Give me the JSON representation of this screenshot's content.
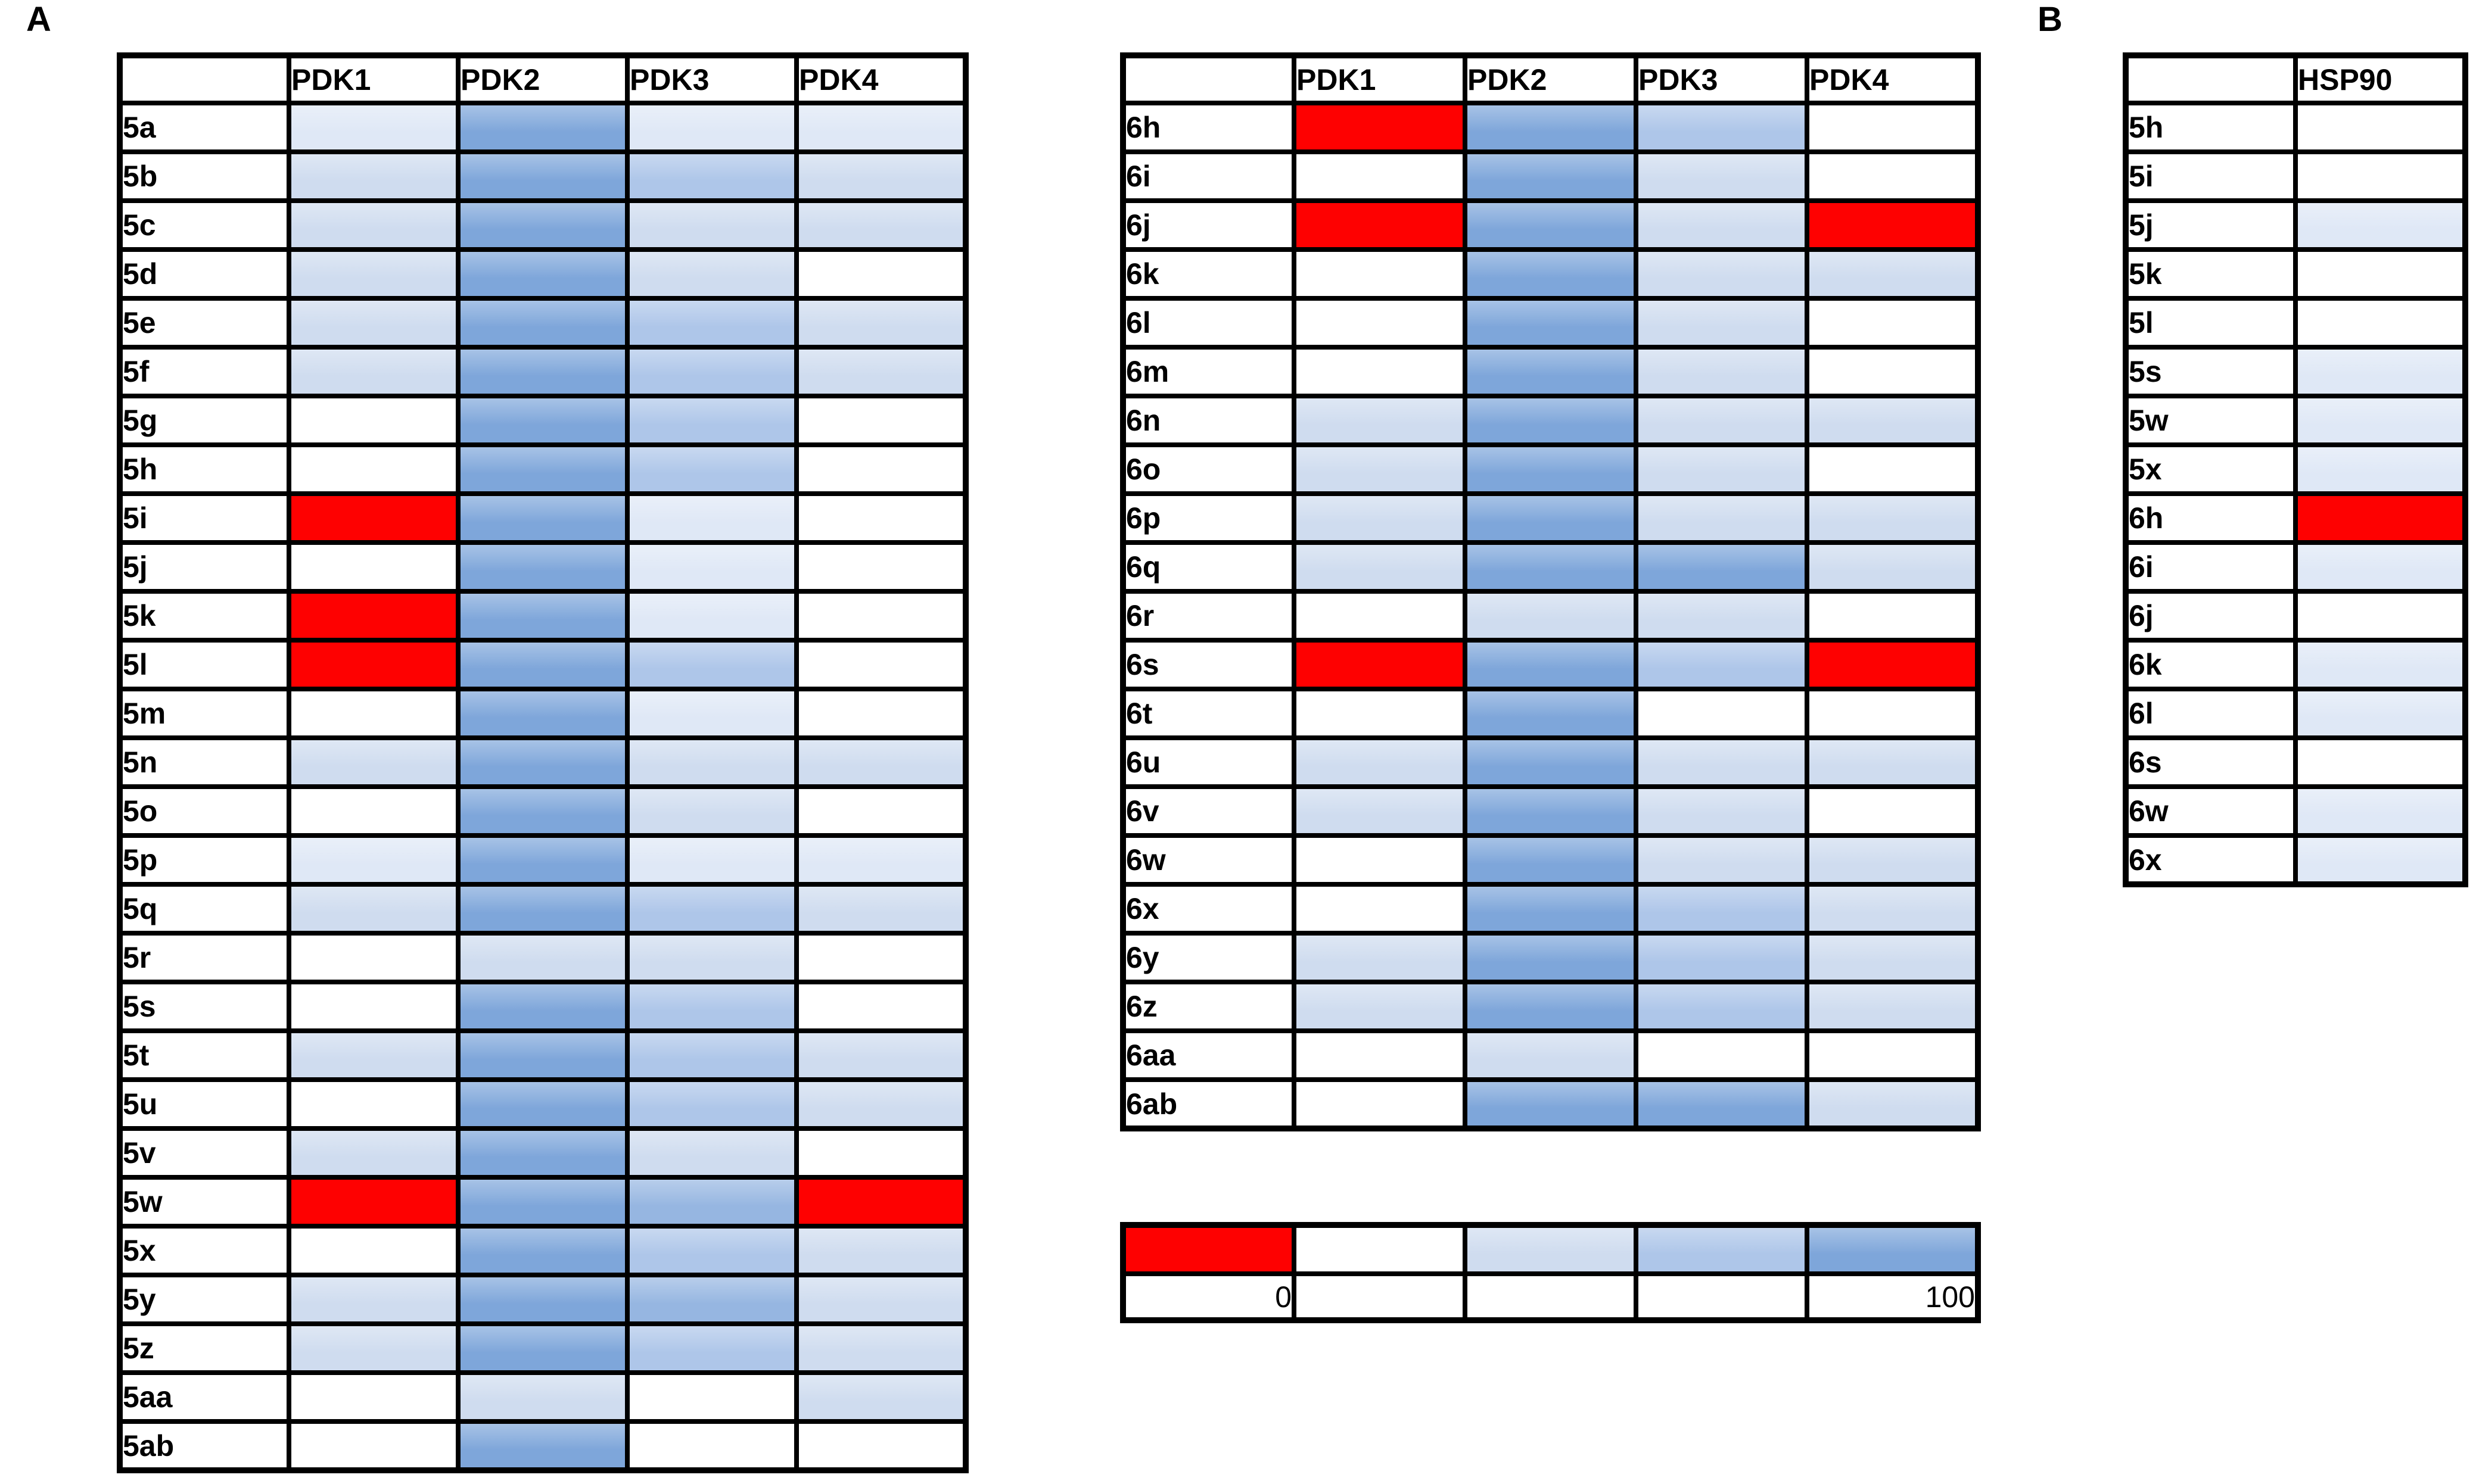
{
  "panels": {
    "a_label": "A",
    "b_label": "B"
  },
  "palette": {
    "R": "#fe0101",
    "0": "#ffffff",
    "1": "#dfe8f6",
    "2": "#cfdcef",
    "3": "#aec6e9",
    "4": "#96b6e1",
    "5": "#7ea6da"
  },
  "tables": {
    "t5": {
      "columns": [
        "",
        "PDK1",
        "PDK2",
        "PDK3",
        "PDK4"
      ],
      "rows": [
        {
          "label": "5a",
          "levels": [
            "1",
            "5",
            "1",
            "1"
          ]
        },
        {
          "label": "5b",
          "levels": [
            "2",
            "5",
            "3",
            "2"
          ]
        },
        {
          "label": "5c",
          "levels": [
            "2",
            "5",
            "2",
            "2"
          ]
        },
        {
          "label": "5d",
          "levels": [
            "2",
            "5",
            "2",
            "0"
          ]
        },
        {
          "label": "5e",
          "levels": [
            "2",
            "5",
            "3",
            "2"
          ]
        },
        {
          "label": "5f",
          "levels": [
            "2",
            "5",
            "3",
            "2"
          ]
        },
        {
          "label": "5g",
          "levels": [
            "0",
            "5",
            "3",
            "0"
          ]
        },
        {
          "label": "5h",
          "levels": [
            "0",
            "5",
            "3",
            "0"
          ]
        },
        {
          "label": "5i",
          "levels": [
            "R",
            "5",
            "1",
            "0"
          ]
        },
        {
          "label": "5j",
          "levels": [
            "0",
            "5",
            "1",
            "0"
          ]
        },
        {
          "label": "5k",
          "levels": [
            "R",
            "5",
            "1",
            "0"
          ]
        },
        {
          "label": "5l",
          "levels": [
            "R",
            "5",
            "3",
            "0"
          ]
        },
        {
          "label": "5m",
          "levels": [
            "0",
            "5",
            "1",
            "0"
          ]
        },
        {
          "label": "5n",
          "levels": [
            "2",
            "5",
            "2",
            "2"
          ]
        },
        {
          "label": "5o",
          "levels": [
            "0",
            "5",
            "2",
            "0"
          ]
        },
        {
          "label": "5p",
          "levels": [
            "1",
            "5",
            "1",
            "1"
          ]
        },
        {
          "label": "5q",
          "levels": [
            "2",
            "5",
            "3",
            "2"
          ]
        },
        {
          "label": "5r",
          "levels": [
            "0",
            "2",
            "2",
            "0"
          ]
        },
        {
          "label": "5s",
          "levels": [
            "0",
            "5",
            "3",
            "0"
          ]
        },
        {
          "label": "5t",
          "levels": [
            "2",
            "5",
            "3",
            "2"
          ]
        },
        {
          "label": "5u",
          "levels": [
            "0",
            "5",
            "3",
            "2"
          ]
        },
        {
          "label": "5v",
          "levels": [
            "2",
            "5",
            "2",
            "0"
          ]
        },
        {
          "label": "5w",
          "levels": [
            "R",
            "5",
            "4",
            "R"
          ]
        },
        {
          "label": "5x",
          "levels": [
            "0",
            "5",
            "3",
            "2"
          ]
        },
        {
          "label": "5y",
          "levels": [
            "2",
            "5",
            "4",
            "2"
          ]
        },
        {
          "label": "5z",
          "levels": [
            "2",
            "5",
            "3",
            "2"
          ]
        },
        {
          "label": "5aa",
          "levels": [
            "0",
            "2",
            "0",
            "2"
          ]
        },
        {
          "label": "5ab",
          "levels": [
            "0",
            "5",
            "0",
            "0"
          ]
        }
      ]
    },
    "t6": {
      "columns": [
        "",
        "PDK1",
        "PDK2",
        "PDK3",
        "PDK4"
      ],
      "rows": [
        {
          "label": "6h",
          "levels": [
            "R",
            "5",
            "3",
            "0"
          ]
        },
        {
          "label": "6i",
          "levels": [
            "0",
            "5",
            "2",
            "0"
          ]
        },
        {
          "label": "6j",
          "levels": [
            "R",
            "5",
            "2",
            "R"
          ]
        },
        {
          "label": "6k",
          "levels": [
            "0",
            "5",
            "2",
            "2"
          ]
        },
        {
          "label": "6l",
          "levels": [
            "0",
            "5",
            "2",
            "0"
          ]
        },
        {
          "label": "6m",
          "levels": [
            "0",
            "5",
            "2",
            "0"
          ]
        },
        {
          "label": "6n",
          "levels": [
            "2",
            "5",
            "2",
            "2"
          ]
        },
        {
          "label": "6o",
          "levels": [
            "2",
            "5",
            "2",
            "0"
          ]
        },
        {
          "label": "6p",
          "levels": [
            "2",
            "5",
            "2",
            "2"
          ]
        },
        {
          "label": "6q",
          "levels": [
            "2",
            "5",
            "5",
            "2"
          ]
        },
        {
          "label": "6r",
          "levels": [
            "0",
            "2",
            "2",
            "0"
          ]
        },
        {
          "label": "6s",
          "levels": [
            "R",
            "5",
            "3",
            "R"
          ]
        },
        {
          "label": "6t",
          "levels": [
            "0",
            "5",
            "0",
            "0"
          ]
        },
        {
          "label": "6u",
          "levels": [
            "2",
            "5",
            "2",
            "2"
          ]
        },
        {
          "label": "6v",
          "levels": [
            "2",
            "5",
            "2",
            "0"
          ]
        },
        {
          "label": "6w",
          "levels": [
            "0",
            "5",
            "2",
            "2"
          ]
        },
        {
          "label": "6x",
          "levels": [
            "0",
            "5",
            "3",
            "2"
          ]
        },
        {
          "label": "6y",
          "levels": [
            "2",
            "5",
            "3",
            "2"
          ]
        },
        {
          "label": "6z",
          "levels": [
            "2",
            "5",
            "3",
            "2"
          ]
        },
        {
          "label": "6aa",
          "levels": [
            "0",
            "2",
            "0",
            "0"
          ]
        },
        {
          "label": "6ab",
          "levels": [
            "0",
            "5",
            "5",
            "2"
          ]
        }
      ]
    },
    "tb": {
      "columns": [
        "",
        "HSP90"
      ],
      "rows": [
        {
          "label": "5h",
          "levels": [
            "0"
          ]
        },
        {
          "label": "5i",
          "levels": [
            "0"
          ]
        },
        {
          "label": "5j",
          "levels": [
            "1"
          ]
        },
        {
          "label": "5k",
          "levels": [
            "0"
          ]
        },
        {
          "label": "5l",
          "levels": [
            "0"
          ]
        },
        {
          "label": "5s",
          "levels": [
            "1"
          ]
        },
        {
          "label": "5w",
          "levels": [
            "1"
          ]
        },
        {
          "label": "5x",
          "levels": [
            "1"
          ]
        },
        {
          "label": "6h",
          "levels": [
            "R"
          ]
        },
        {
          "label": "6i",
          "levels": [
            "1"
          ]
        },
        {
          "label": "6j",
          "levels": [
            "0"
          ]
        },
        {
          "label": "6k",
          "levels": [
            "1"
          ]
        },
        {
          "label": "6l",
          "levels": [
            "1"
          ]
        },
        {
          "label": "6s",
          "levels": [
            "0"
          ]
        },
        {
          "label": "6w",
          "levels": [
            "1"
          ]
        },
        {
          "label": "6x",
          "levels": [
            "1"
          ]
        }
      ]
    }
  },
  "legend": {
    "swatch_levels": [
      "R",
      "0",
      "2",
      "3",
      "5"
    ],
    "labels": [
      "0",
      "",
      "",
      "",
      "100"
    ],
    "min_label": "0",
    "max_label": "100"
  },
  "chart_data": [
    {
      "type": "heatmap",
      "title": "Panel A (left): compounds 5a-5ab vs PDK1-PDK4",
      "columns": [
        "PDK1",
        "PDK2",
        "PDK3",
        "PDK4"
      ],
      "rows": [
        "5a",
        "5b",
        "5c",
        "5d",
        "5e",
        "5f",
        "5g",
        "5h",
        "5i",
        "5j",
        "5k",
        "5l",
        "5m",
        "5n",
        "5o",
        "5p",
        "5q",
        "5r",
        "5s",
        "5t",
        "5u",
        "5v",
        "5w",
        "5x",
        "5y",
        "5z",
        "5aa",
        "5ab"
      ],
      "values_levels": [
        [
          "1",
          "5",
          "1",
          "1"
        ],
        [
          "2",
          "5",
          "3",
          "2"
        ],
        [
          "2",
          "5",
          "2",
          "2"
        ],
        [
          "2",
          "5",
          "2",
          "0"
        ],
        [
          "2",
          "5",
          "3",
          "2"
        ],
        [
          "2",
          "5",
          "3",
          "2"
        ],
        [
          "0",
          "5",
          "3",
          "0"
        ],
        [
          "0",
          "5",
          "3",
          "0"
        ],
        [
          "R",
          "5",
          "1",
          "0"
        ],
        [
          "0",
          "5",
          "1",
          "0"
        ],
        [
          "R",
          "5",
          "1",
          "0"
        ],
        [
          "R",
          "5",
          "3",
          "0"
        ],
        [
          "0",
          "5",
          "1",
          "0"
        ],
        [
          "2",
          "5",
          "2",
          "2"
        ],
        [
          "0",
          "5",
          "2",
          "0"
        ],
        [
          "1",
          "5",
          "1",
          "1"
        ],
        [
          "2",
          "5",
          "3",
          "2"
        ],
        [
          "0",
          "2",
          "2",
          "0"
        ],
        [
          "0",
          "5",
          "3",
          "0"
        ],
        [
          "2",
          "5",
          "3",
          "2"
        ],
        [
          "0",
          "5",
          "3",
          "2"
        ],
        [
          "2",
          "5",
          "2",
          "0"
        ],
        [
          "R",
          "5",
          "4",
          "R"
        ],
        [
          "0",
          "5",
          "3",
          "2"
        ],
        [
          "2",
          "5",
          "4",
          "2"
        ],
        [
          "2",
          "5",
          "3",
          "2"
        ],
        [
          "0",
          "2",
          "0",
          "2"
        ],
        [
          "0",
          "5",
          "0",
          "0"
        ]
      ],
      "colorscale": {
        "min": 0,
        "max": 100,
        "min_color": "#ffffff",
        "max_color": "#7ea6da",
        "special_color": "#fe0101"
      },
      "level_color_map": {
        "R": "#fe0101",
        "0": "#ffffff",
        "1": "#dfe8f6",
        "2": "#cfdcef",
        "3": "#aec6e9",
        "4": "#96b6e1",
        "5": "#7ea6da"
      }
    },
    {
      "type": "heatmap",
      "title": "Panel A (right): compounds 6h-6ab vs PDK1-PDK4",
      "columns": [
        "PDK1",
        "PDK2",
        "PDK3",
        "PDK4"
      ],
      "rows": [
        "6h",
        "6i",
        "6j",
        "6k",
        "6l",
        "6m",
        "6n",
        "6o",
        "6p",
        "6q",
        "6r",
        "6s",
        "6t",
        "6u",
        "6v",
        "6w",
        "6x",
        "6y",
        "6z",
        "6aa",
        "6ab"
      ],
      "values_levels": [
        [
          "R",
          "5",
          "3",
          "0"
        ],
        [
          "0",
          "5",
          "2",
          "0"
        ],
        [
          "R",
          "5",
          "2",
          "R"
        ],
        [
          "0",
          "5",
          "2",
          "2"
        ],
        [
          "0",
          "5",
          "2",
          "0"
        ],
        [
          "0",
          "5",
          "2",
          "0"
        ],
        [
          "2",
          "5",
          "2",
          "2"
        ],
        [
          "2",
          "5",
          "2",
          "0"
        ],
        [
          "2",
          "5",
          "2",
          "2"
        ],
        [
          "2",
          "5",
          "5",
          "2"
        ],
        [
          "0",
          "2",
          "2",
          "0"
        ],
        [
          "R",
          "5",
          "3",
          "R"
        ],
        [
          "0",
          "5",
          "0",
          "0"
        ],
        [
          "2",
          "5",
          "2",
          "2"
        ],
        [
          "2",
          "5",
          "2",
          "0"
        ],
        [
          "0",
          "5",
          "2",
          "2"
        ],
        [
          "0",
          "5",
          "3",
          "2"
        ],
        [
          "2",
          "5",
          "3",
          "2"
        ],
        [
          "2",
          "5",
          "3",
          "2"
        ],
        [
          "0",
          "2",
          "0",
          "0"
        ],
        [
          "0",
          "5",
          "5",
          "2"
        ]
      ],
      "colorscale": {
        "min": 0,
        "max": 100,
        "min_color": "#ffffff",
        "max_color": "#7ea6da",
        "special_color": "#fe0101"
      },
      "level_color_map": {
        "R": "#fe0101",
        "0": "#ffffff",
        "1": "#dfe8f6",
        "2": "#cfdcef",
        "3": "#aec6e9",
        "4": "#96b6e1",
        "5": "#7ea6da"
      }
    },
    {
      "type": "heatmap",
      "title": "Panel B: selected compounds vs HSP90",
      "columns": [
        "HSP90"
      ],
      "rows": [
        "5h",
        "5i",
        "5j",
        "5k",
        "5l",
        "5s",
        "5w",
        "5x",
        "6h",
        "6i",
        "6j",
        "6k",
        "6l",
        "6s",
        "6w",
        "6x"
      ],
      "values_levels": [
        [
          "0"
        ],
        [
          "0"
        ],
        [
          "1"
        ],
        [
          "0"
        ],
        [
          "0"
        ],
        [
          "1"
        ],
        [
          "1"
        ],
        [
          "1"
        ],
        [
          "R"
        ],
        [
          "1"
        ],
        [
          "0"
        ],
        [
          "1"
        ],
        [
          "1"
        ],
        [
          "0"
        ],
        [
          "1"
        ],
        [
          "1"
        ]
      ],
      "colorscale": {
        "min": 0,
        "max": 100,
        "min_color": "#ffffff",
        "max_color": "#7ea6da",
        "special_color": "#fe0101"
      },
      "level_color_map": {
        "R": "#fe0101",
        "0": "#ffffff",
        "1": "#dfe8f6",
        "2": "#cfdcef",
        "3": "#aec6e9",
        "4": "#96b6e1",
        "5": "#7ea6da"
      }
    }
  ]
}
